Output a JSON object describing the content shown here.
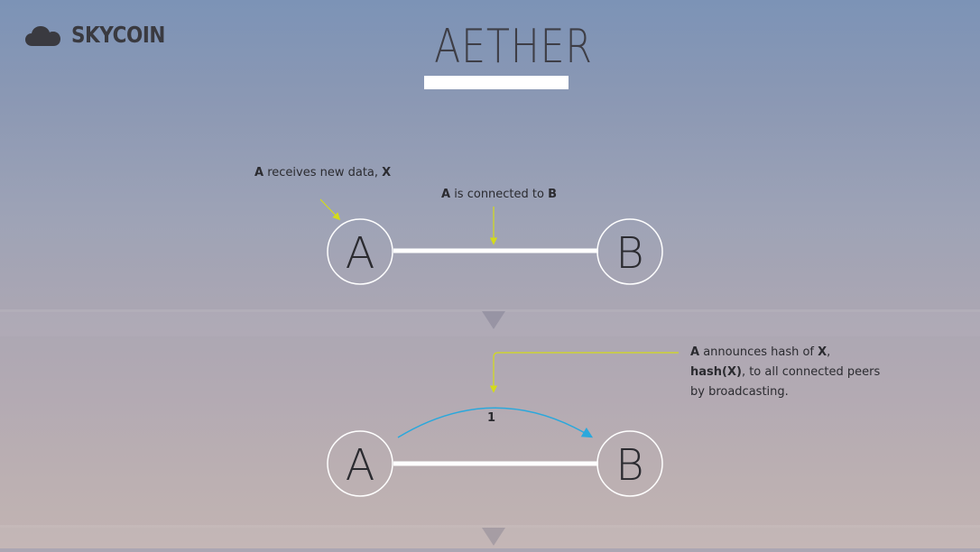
{
  "brand": {
    "name": "SKYCOIN",
    "icon": "cloud-icon"
  },
  "title": "AETHER",
  "panels": [
    {
      "nodes": [
        "A",
        "B"
      ],
      "annotations": [
        {
          "parts": [
            {
              "b": "A"
            },
            {
              "t": " receives new data, "
            },
            {
              "b": "X"
            }
          ]
        },
        {
          "parts": [
            {
              "b": "A"
            },
            {
              "t": " is connected to "
            },
            {
              "b": "B"
            }
          ]
        }
      ]
    },
    {
      "nodes": [
        "A",
        "B"
      ],
      "step_label": "1",
      "annotation_lines": [
        {
          "parts": [
            {
              "b": "A"
            },
            {
              "t": " announces hash of "
            },
            {
              "b": "X"
            },
            {
              "t": ","
            }
          ]
        },
        {
          "parts": [
            {
              "b": "hash(X)"
            },
            {
              "t": ", to all connected peers"
            }
          ]
        },
        {
          "parts": [
            {
              "t": "by broadcasting."
            }
          ]
        }
      ]
    }
  ],
  "colors": {
    "annotation_arrow": "#d4dc18",
    "broadcast_arc": "#2aa8dc",
    "link": "#ffffff",
    "node_stroke": "#ffffff",
    "text": "#2b2b30"
  }
}
